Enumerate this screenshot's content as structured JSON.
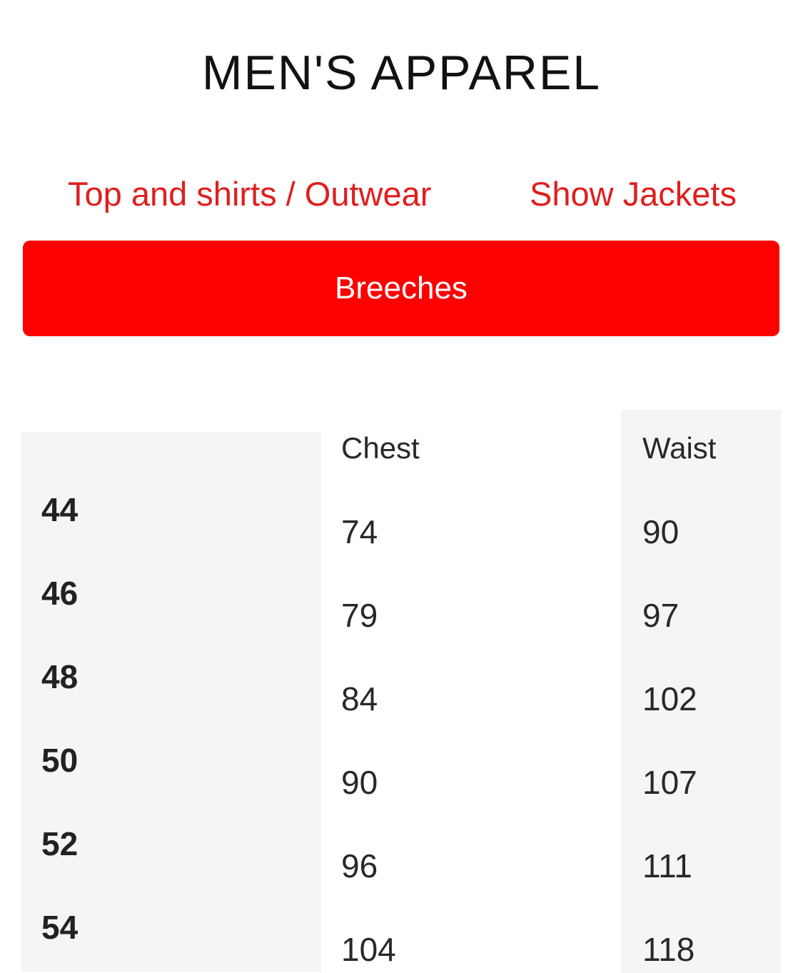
{
  "header": {
    "title": "MEN'S APPAREL"
  },
  "tabs": [
    {
      "label": "Top and shirts / Outwear"
    },
    {
      "label": "Show Jackets"
    }
  ],
  "category_button": {
    "label": "Breeches"
  },
  "size_table": {
    "columns": {
      "size": "",
      "chest": "Chest",
      "waist": "Waist"
    },
    "rows": [
      {
        "size": "44",
        "chest": "74",
        "waist": "90"
      },
      {
        "size": "46",
        "chest": "79",
        "waist": "97"
      },
      {
        "size": "48",
        "chest": "84",
        "waist": "102"
      },
      {
        "size": "50",
        "chest": "90",
        "waist": "107"
      },
      {
        "size": "52",
        "chest": "96",
        "waist": "111"
      },
      {
        "size": "54",
        "chest": "104",
        "waist": "118"
      }
    ]
  },
  "colors": {
    "button_red": "#fd0000",
    "link_red": "#e01e1e",
    "column_bg": "#f5f5f5",
    "text_dark": "#26282c"
  }
}
